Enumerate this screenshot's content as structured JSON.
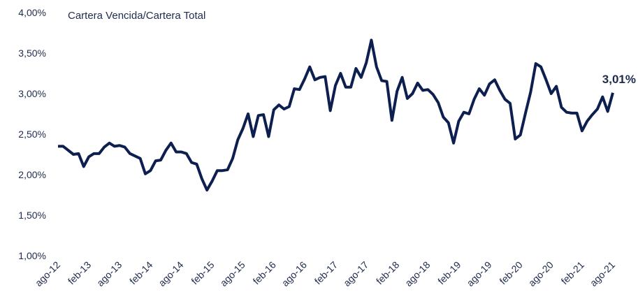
{
  "chart_data": {
    "type": "line",
    "title": "Cartera Vencida/Cartera Total",
    "categories": [
      "ago-12",
      null,
      null,
      null,
      null,
      null,
      "feb-13",
      null,
      null,
      null,
      null,
      null,
      "ago-13",
      null,
      null,
      null,
      null,
      null,
      "feb-14",
      null,
      null,
      null,
      null,
      null,
      "ago-14",
      null,
      null,
      null,
      null,
      null,
      "feb-15",
      null,
      null,
      null,
      null,
      null,
      "ago-15",
      null,
      null,
      null,
      null,
      null,
      "feb-16",
      null,
      null,
      null,
      null,
      null,
      "ago-16",
      null,
      null,
      null,
      null,
      null,
      "feb-17",
      null,
      null,
      null,
      null,
      null,
      "ago-17",
      null,
      null,
      null,
      null,
      null,
      "feb-18",
      null,
      null,
      null,
      null,
      null,
      "ago-18",
      null,
      null,
      null,
      null,
      null,
      "feb-19",
      null,
      null,
      null,
      null,
      null,
      "ago-19",
      null,
      null,
      null,
      null,
      null,
      "feb-20",
      null,
      null,
      null,
      null,
      null,
      "ago-20",
      null,
      null,
      null,
      null,
      null,
      "feb-21",
      null,
      null,
      null,
      null,
      null,
      "ago-21"
    ],
    "series": [
      {
        "name": "Cartera Vencida/Cartera Total",
        "color": "#0d1f4f",
        "values": [
          2.35,
          2.35,
          2.3,
          2.25,
          2.26,
          2.1,
          2.22,
          2.26,
          2.26,
          2.34,
          2.39,
          2.35,
          2.36,
          2.34,
          2.26,
          2.23,
          2.2,
          2.01,
          2.05,
          2.17,
          2.18,
          2.3,
          2.39,
          2.28,
          2.28,
          2.26,
          2.15,
          2.13,
          1.95,
          1.81,
          1.92,
          2.05,
          2.05,
          2.06,
          2.2,
          2.43,
          2.57,
          2.75,
          2.47,
          2.73,
          2.74,
          2.47,
          2.8,
          2.86,
          2.81,
          2.84,
          3.06,
          3.05,
          3.18,
          3.33,
          3.17,
          3.2,
          3.21,
          2.79,
          3.1,
          3.25,
          3.08,
          3.08,
          3.31,
          3.2,
          3.38,
          3.66,
          3.33,
          3.16,
          3.15,
          2.67,
          3.03,
          3.2,
          2.94,
          3.0,
          3.13,
          3.04,
          3.05,
          2.99,
          2.89,
          2.71,
          2.64,
          2.39,
          2.66,
          2.77,
          2.75,
          2.93,
          3.06,
          2.98,
          3.12,
          3.17,
          3.04,
          2.93,
          2.88,
          2.44,
          2.49,
          2.76,
          3.02,
          3.37,
          3.33,
          3.17,
          3.0,
          3.09,
          2.83,
          2.77,
          2.76,
          2.76,
          2.54,
          2.66,
          2.74,
          2.81,
          2.96,
          2.78,
          3.01
        ],
        "value_labels": [
          null,
          null,
          null,
          null,
          null,
          null,
          null,
          null,
          null,
          null,
          null,
          null,
          null,
          null,
          null,
          null,
          null,
          null,
          null,
          null,
          null,
          null,
          null,
          null,
          null,
          null,
          null,
          null,
          null,
          null,
          null,
          null,
          null,
          null,
          null,
          null,
          null,
          null,
          null,
          null,
          null,
          null,
          null,
          null,
          null,
          null,
          null,
          null,
          null,
          null,
          null,
          null,
          null,
          null,
          null,
          null,
          null,
          null,
          null,
          null,
          null,
          null,
          null,
          null,
          null,
          null,
          null,
          null,
          null,
          null,
          null,
          null,
          null,
          null,
          null,
          null,
          null,
          null,
          null,
          null,
          null,
          null,
          null,
          null,
          null,
          null,
          null,
          null,
          null,
          null,
          null,
          null,
          null,
          null,
          null,
          null,
          null,
          null,
          null,
          null,
          null,
          null,
          null,
          null,
          null,
          null,
          null,
          null,
          "3,01%"
        ]
      }
    ],
    "ylim": [
      1,
      4
    ],
    "yticks": [
      {
        "value": 1,
        "label": "1,00%"
      },
      {
        "value": 1.5,
        "label": "1,50%"
      },
      {
        "value": 2,
        "label": "2,00%"
      },
      {
        "value": 2.5,
        "label": "2,50%"
      },
      {
        "value": 3,
        "label": "3,00%"
      },
      {
        "value": 3.5,
        "label": "3,50%"
      },
      {
        "value": 4,
        "label": "4,00%"
      }
    ],
    "grid": false
  }
}
